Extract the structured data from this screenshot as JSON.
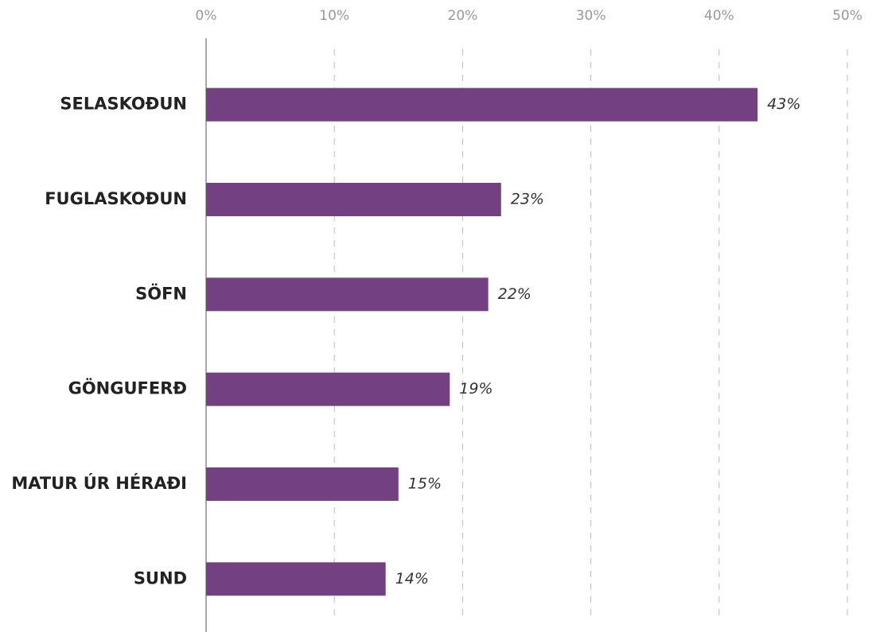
{
  "chart_data": {
    "type": "hbar",
    "categories": [
      "SELASKOÐUN",
      "FUGLASKOÐUN",
      "SÖFN",
      "GÖNGUFERÐ",
      "MATUR ÚR HÉRAÐI",
      "SUND"
    ],
    "values": [
      43,
      23,
      22,
      19,
      15,
      14
    ],
    "value_labels": [
      "43%",
      "23%",
      "22%",
      "19%",
      "15%",
      "14%"
    ],
    "color": "#734182",
    "xlim": [
      0,
      50
    ],
    "xticks": [
      {
        "value": 0,
        "label": "0%"
      },
      {
        "value": 10,
        "label": "10%"
      },
      {
        "value": 20,
        "label": "20%"
      },
      {
        "value": 30,
        "label": "30%"
      },
      {
        "value": 40,
        "label": "40%"
      },
      {
        "value": 50,
        "label": "50%"
      }
    ],
    "grid": true
  }
}
